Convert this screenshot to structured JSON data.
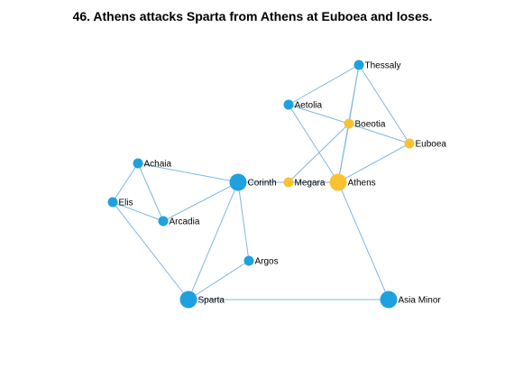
{
  "title": "46. Athens attacks Sparta from Athens at Euboea and loses.",
  "colors": {
    "sparta_side": "#1ea1df",
    "athens_side": "#f8c233",
    "edge": "#7fb8e0"
  },
  "graph": {
    "nodes": [
      {
        "id": "thessaly",
        "label": "Thessaly",
        "side": "sparta_side",
        "size": "small"
      },
      {
        "id": "aetolia",
        "label": "Aetolia",
        "side": "sparta_side",
        "size": "small"
      },
      {
        "id": "boeotia",
        "label": "Boeotia",
        "side": "athens_side",
        "size": "small"
      },
      {
        "id": "euboea",
        "label": "Euboea",
        "side": "athens_side",
        "size": "small"
      },
      {
        "id": "achaia",
        "label": "Achaia",
        "side": "sparta_side",
        "size": "small"
      },
      {
        "id": "corinth",
        "label": "Corinth",
        "side": "sparta_side",
        "size": "large"
      },
      {
        "id": "megara",
        "label": "Megara",
        "side": "athens_side",
        "size": "small"
      },
      {
        "id": "athens",
        "label": "Athens",
        "side": "athens_side",
        "size": "large"
      },
      {
        "id": "elis",
        "label": "Elis",
        "side": "sparta_side",
        "size": "small"
      },
      {
        "id": "arcadia",
        "label": "Arcadia",
        "side": "sparta_side",
        "size": "small"
      },
      {
        "id": "argos",
        "label": "Argos",
        "side": "sparta_side",
        "size": "small"
      },
      {
        "id": "sparta",
        "label": "Sparta",
        "side": "sparta_side",
        "size": "large"
      },
      {
        "id": "asia_minor",
        "label": "Asia Minor",
        "side": "sparta_side",
        "size": "large"
      }
    ],
    "edges": [
      [
        "thessaly",
        "aetolia"
      ],
      [
        "thessaly",
        "boeotia"
      ],
      [
        "thessaly",
        "euboea"
      ],
      [
        "thessaly",
        "athens"
      ],
      [
        "aetolia",
        "boeotia"
      ],
      [
        "aetolia",
        "athens"
      ],
      [
        "boeotia",
        "euboea"
      ],
      [
        "boeotia",
        "megara"
      ],
      [
        "boeotia",
        "athens"
      ],
      [
        "euboea",
        "athens"
      ],
      [
        "megara",
        "athens"
      ],
      [
        "megara",
        "corinth"
      ],
      [
        "athens",
        "asia_minor"
      ],
      [
        "achaia",
        "corinth"
      ],
      [
        "achaia",
        "elis"
      ],
      [
        "achaia",
        "arcadia"
      ],
      [
        "corinth",
        "arcadia"
      ],
      [
        "corinth",
        "argos"
      ],
      [
        "corinth",
        "sparta"
      ],
      [
        "elis",
        "arcadia"
      ],
      [
        "elis",
        "sparta"
      ],
      [
        "argos",
        "sparta"
      ],
      [
        "sparta",
        "asia_minor"
      ]
    ]
  }
}
